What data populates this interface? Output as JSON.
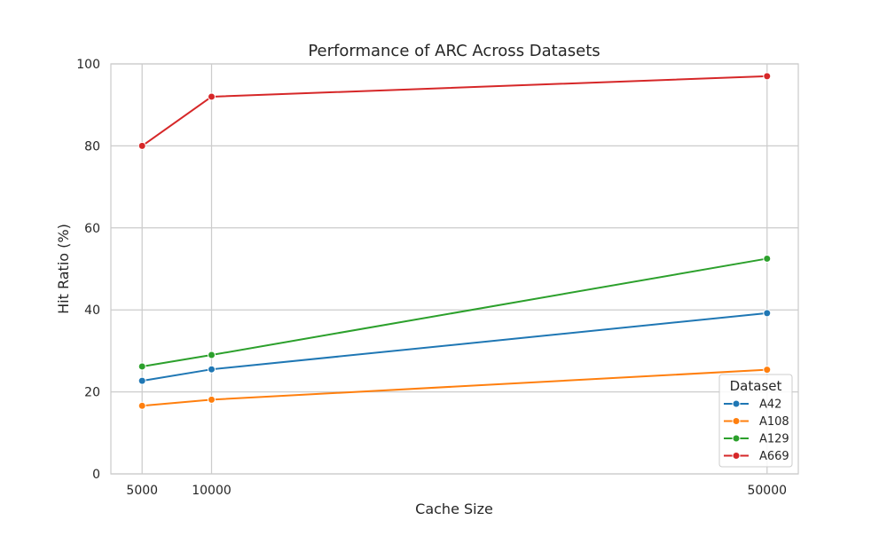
{
  "chart_data": {
    "type": "line",
    "title": "Performance of ARC Across Datasets",
    "xlabel": "Cache Size",
    "ylabel": "Hit Ratio (%)",
    "x": [
      5000,
      10000,
      50000
    ],
    "x_ticks": [
      "5000",
      "10000",
      "50000"
    ],
    "xlim": [
      2750,
      52250
    ],
    "ylim": [
      0,
      100
    ],
    "y_ticks": [
      0,
      20,
      40,
      60,
      80,
      100
    ],
    "grid": true,
    "legend": {
      "title": "Dataset",
      "placement": "bottom-right"
    },
    "series": [
      {
        "name": "A42",
        "color": "#1f77b4",
        "values": [
          22.7,
          25.5,
          39.2
        ]
      },
      {
        "name": "A108",
        "color": "#ff7f0e",
        "values": [
          16.6,
          18.1,
          25.4
        ]
      },
      {
        "name": "A129",
        "color": "#2ca02c",
        "values": [
          26.2,
          29.0,
          52.5
        ]
      },
      {
        "name": "A669",
        "color": "#d62728",
        "values": [
          80.0,
          92.0,
          97.0
        ]
      }
    ]
  }
}
